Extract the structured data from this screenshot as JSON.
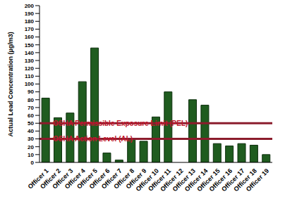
{
  "chart_data": {
    "type": "bar",
    "y_label": "Actual Lead Concentration (µg/m3)",
    "categories": [
      "Officer 1",
      "Officer 2",
      "Officer 3",
      "Officer 4",
      "Officer 5",
      "Officer 6",
      "Officer 7",
      "Officer 8",
      "Officer 9",
      "Officer 10",
      "Officer 11",
      "Officer 12",
      "Officer 13",
      "Officer 14",
      "Officer 15",
      "Officer 16",
      "Officer 17",
      "Officer 18",
      "Officer 19"
    ],
    "values": [
      82,
      57,
      63,
      103,
      146,
      12,
      3,
      30,
      27,
      58,
      90,
      0,
      80,
      73,
      24,
      21,
      24,
      22,
      10
    ],
    "color": "#1f5c1f",
    "ylim": [
      0,
      200
    ],
    "yticks": [
      0,
      10,
      20,
      30,
      40,
      50,
      60,
      70,
      80,
      90,
      100,
      110,
      120,
      130,
      140,
      150,
      160,
      170,
      180,
      190,
      200
    ],
    "grid": false,
    "reference_lines": [
      {
        "value": 50,
        "label": "OSHA Permissible Exposure Limit (PEL)",
        "color": "#8b1c2c"
      },
      {
        "value": 30,
        "label": "OSHA Action Level (AL)",
        "color": "#8b1c2c"
      }
    ]
  }
}
